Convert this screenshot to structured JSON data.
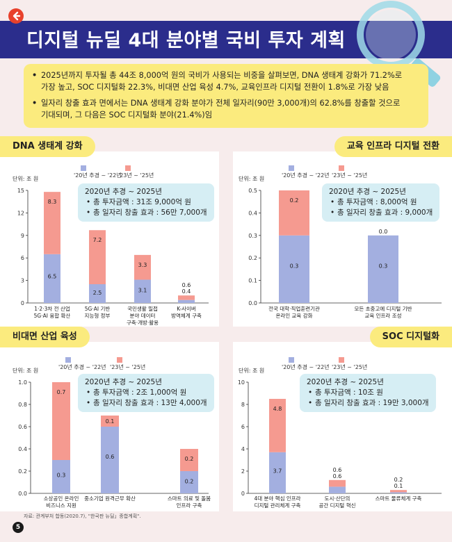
{
  "header": {
    "title": "디지털 뉴딜 4대 분야별 국비 투자 계획",
    "back_icon": "back-arrow-icon",
    "decor_icon": "magnifier-icon"
  },
  "summary": {
    "items": [
      "2025년까지 투자될 총 44조 8,000억 원의 국비가 사용되는 비중을 살펴보면, DNA 생태계 강화가 71.2%로 가장 높고, SOC 디지털화 22.3%, 비대면 산업 육성 4.7%, 교육인프라 디지털 전환이 1.8%로 가장 낮음",
      "일자리 창출 효과 면에서는 DNA 생태계 강화 분야가 전체 일자리(90만 3,000개)의 62.8%를 창출할 것으로 기대되며, 그 다음은 SOC 디지털화 분야(21.4%)임"
    ]
  },
  "colors": {
    "series1": "#a3afe0",
    "series2": "#f59a90",
    "accent": "#2b2d8c",
    "tab": "#fbeb7e",
    "infobox": "#d6eef4"
  },
  "chart_data": [
    {
      "type": "bar",
      "stacked": true,
      "title": "DNA 생태계 강화",
      "unit": "단위: 조 원",
      "ylim": [
        0,
        15
      ],
      "yticks": [
        0,
        3,
        6,
        9,
        12,
        15
      ],
      "tick_labels": [
        "0",
        "3",
        "6",
        "9",
        "12",
        "15"
      ],
      "categories": [
        [
          "1·2·3차 전 산업",
          "5G·AI 융합 확산"
        ],
        [
          "5G·AI 기반",
          "지능형 정부"
        ],
        [
          "국민생활 밀접",
          "분야 데이터",
          "구축·개방·활용"
        ],
        [
          "K-사이버",
          "방역체계 구축"
        ]
      ],
      "series": [
        {
          "name": "'20년 추경 ~ '22년",
          "values": [
            6.5,
            2.5,
            3.1,
            0.4
          ],
          "labels": [
            "6.5",
            "2.5",
            "3.1",
            "0.4"
          ]
        },
        {
          "name": "'23년 ~ '25년",
          "values": [
            8.3,
            7.2,
            3.3,
            0.6
          ],
          "labels": [
            "8.3",
            "7.2",
            "3.3",
            "0.6"
          ]
        }
      ],
      "info": {
        "title": "2020년 추경 ~ 2025년",
        "lines": [
          "총 투자금액 : 31조 9,000억 원",
          "총 일자리 창출 효과 : 56만 7,000개"
        ]
      }
    },
    {
      "type": "bar",
      "stacked": true,
      "title": "교육 인프라 디지털 전환",
      "unit": "단위: 조 원",
      "ylim": [
        0,
        0.5
      ],
      "yticks": [
        0,
        0.1,
        0.2,
        0.3,
        0.4,
        0.5
      ],
      "tick_labels": [
        "0.0",
        "0.1",
        "0.2",
        "0.3",
        "0.4",
        "0.5"
      ],
      "categories": [
        [
          "전국 대학·직업훈련기관",
          "온라인 교육 강화"
        ],
        [
          "모든 초중고에 디지털 기반",
          "교육 인프라 조성"
        ]
      ],
      "series": [
        {
          "name": "'20년 추경 ~ '22년",
          "values": [
            0.3,
            0.3
          ],
          "labels": [
            "0.3",
            "0.3"
          ]
        },
        {
          "name": "'23년 ~ '25년",
          "values": [
            0.2,
            0.0
          ],
          "labels": [
            "0.2",
            "0.0"
          ]
        }
      ],
      "info": {
        "title": "2020년 추경 ~ 2025년",
        "lines": [
          "총 투자금액 : 8,000억 원",
          "총 일자리 창출 효과 : 9,000개"
        ]
      }
    },
    {
      "type": "bar",
      "stacked": true,
      "title": "비대면 산업 육성",
      "unit": "단위: 조 원",
      "ylim": [
        0,
        1.0
      ],
      "yticks": [
        0,
        0.2,
        0.4,
        0.6,
        0.8,
        1.0
      ],
      "tick_labels": [
        "0.0",
        "0.2",
        "0.4",
        "0.6",
        "0.8",
        "1.0"
      ],
      "categories": [
        [
          "소상공인 온라인",
          "비즈니스 지원"
        ],
        [
          "중소기업 원격근무 확산"
        ],
        [
          "스마트 의료 및 돌봄",
          "인프라 구축"
        ]
      ],
      "series": [
        {
          "name": "'20년 추경 ~ '22년",
          "values": [
            0.3,
            0.6,
            0.2
          ],
          "labels": [
            "0.3",
            "0.6",
            "0.2"
          ]
        },
        {
          "name": "'23년 ~ '25년",
          "values": [
            0.7,
            0.1,
            0.2
          ],
          "labels": [
            "0.7",
            "0.1",
            "0.2"
          ]
        }
      ],
      "info": {
        "title": "2020년 추경 ~ 2025년",
        "lines": [
          "총 투자금액 : 2조 1,000억 원",
          "총 일자리 창출 효과 : 13만 4,000개"
        ]
      }
    },
    {
      "type": "bar",
      "stacked": true,
      "title": "SOC 디지털화",
      "unit": "단위: 조 원",
      "ylim": [
        0,
        10
      ],
      "yticks": [
        0,
        2,
        4,
        6,
        8,
        10
      ],
      "tick_labels": [
        "0",
        "2",
        "4",
        "6",
        "8",
        "10"
      ],
      "categories": [
        [
          "4대 분야 핵심 인프라",
          "디지털 관리체계 구축"
        ],
        [
          "도시·산단의",
          "공간 디지털 혁신"
        ],
        [
          "스마트 물류체계 구축"
        ]
      ],
      "series": [
        {
          "name": "'20년 추경 ~ '22년",
          "values": [
            3.7,
            0.6,
            0.1
          ],
          "labels": [
            "3.7",
            "0.6",
            "0.1"
          ]
        },
        {
          "name": "'23년 ~ '25년",
          "values": [
            4.8,
            0.6,
            0.2
          ],
          "labels": [
            "4.8",
            "0.6",
            "0.2"
          ]
        }
      ],
      "info": {
        "title": "2020년 추경 ~ 2025년",
        "lines": [
          "총 투자금액 : 10조 원",
          "총 일자리 창출 효과 : 19만 3,000개"
        ]
      }
    }
  ],
  "footer": {
    "source": "자료: 관계부처 합동(2020.7), \"한국판 뉴딜」종합계획\".",
    "page_number": "5"
  }
}
